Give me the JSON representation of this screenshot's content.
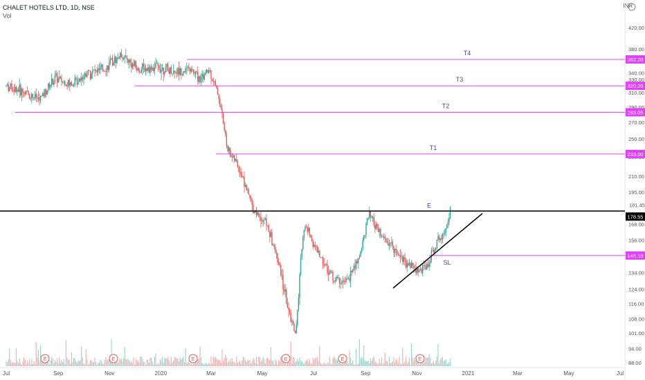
{
  "header": {
    "symbol": "CHALET HOTELS LTD, 1D, NSE",
    "volume_label": "Vol"
  },
  "currency": "INR",
  "colors": {
    "up": "#26a69a",
    "down": "#ef5350",
    "target_line": "#e040fb",
    "target_text": "#3f3fd2",
    "price_tag": "#e040fb",
    "last_price_tag": "#000000"
  },
  "chart_data": {
    "type": "candlestick",
    "y_axis": {
      "scale": "log",
      "ticks": [
        420.0,
        380.0,
        360.0,
        340.0,
        330.0,
        310.0,
        290.0,
        270.0,
        250.0,
        230.0,
        210.0,
        195.0,
        181.45,
        168.0,
        156.0,
        145.0,
        134.0,
        124.0,
        116.0,
        108.0,
        101.0,
        94.0,
        88.0
      ],
      "range": [
        87,
        470
      ]
    },
    "x_axis": {
      "ticks": [
        "Jul",
        "Sep",
        "Nov",
        "2020",
        "Mar",
        "May",
        "Jul",
        "Sep",
        "Nov",
        "2021",
        "Mar",
        "May",
        "Jul"
      ]
    },
    "levels": [
      {
        "name": "T4",
        "value": 362.2,
        "tag": "362.20"
      },
      {
        "name": "T3",
        "value": 320.2,
        "tag": "320.20"
      },
      {
        "name": "T2",
        "value": 283.05,
        "tag": "283.05"
      },
      {
        "name": "T1",
        "value": 233.0,
        "tag": "233.00"
      },
      {
        "name": "SL",
        "value": 145.1,
        "tag": "145.10"
      }
    ],
    "entry": {
      "label": "E",
      "value": 178.55,
      "tag": "178.55"
    },
    "earnings_markers": [
      "E",
      "E",
      "E",
      "E",
      "E",
      "E"
    ],
    "price_path": [
      [
        "2019-07-01",
        320
      ],
      [
        "2019-07-20",
        312
      ],
      [
        "2019-08-10",
        300
      ],
      [
        "2019-08-28",
        332
      ],
      [
        "2019-09-15",
        322
      ],
      [
        "2019-10-05",
        340
      ],
      [
        "2019-10-25",
        345
      ],
      [
        "2019-11-15",
        370
      ],
      [
        "2019-12-05",
        345
      ],
      [
        "2019-12-28",
        350
      ],
      [
        "2020-01-15",
        342
      ],
      [
        "2020-02-05",
        345
      ],
      [
        "2020-02-18",
        330
      ],
      [
        "2020-02-28",
        345
      ],
      [
        "2020-03-10",
        305
      ],
      [
        "2020-03-20",
        240
      ],
      [
        "2020-04-05",
        215
      ],
      [
        "2020-04-20",
        180
      ],
      [
        "2020-05-05",
        170
      ],
      [
        "2020-05-20",
        140
      ],
      [
        "2020-06-01",
        112
      ],
      [
        "2020-06-10",
        100
      ],
      [
        "2020-06-20",
        168
      ],
      [
        "2020-07-05",
        148
      ],
      [
        "2020-07-25",
        130
      ],
      [
        "2020-08-10",
        128
      ],
      [
        "2020-08-25",
        145
      ],
      [
        "2020-09-05",
        175
      ],
      [
        "2020-09-20",
        158
      ],
      [
        "2020-10-05",
        150
      ],
      [
        "2020-10-20",
        140
      ],
      [
        "2020-11-05",
        135
      ],
      [
        "2020-11-15",
        140
      ],
      [
        "2020-11-25",
        155
      ],
      [
        "2020-12-05",
        165
      ],
      [
        "2020-12-12",
        181.45
      ]
    ]
  }
}
